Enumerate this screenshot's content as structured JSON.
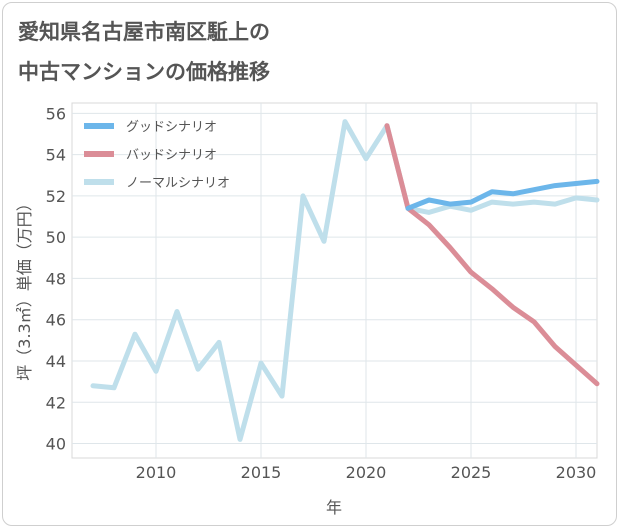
{
  "title": {
    "line1": "愛知県名古屋市南区駈上の",
    "line2": "中古マンションの価格推移"
  },
  "chart_data": {
    "type": "line",
    "xlabel": "年",
    "ylabel": "坪（3.3㎡）単価（万円）",
    "xlim": [
      2006,
      2031
    ],
    "ylim": [
      39.3,
      56.5
    ],
    "xticks": [
      2010,
      2015,
      2020,
      2025,
      2030
    ],
    "yticks": [
      40,
      42,
      44,
      46,
      48,
      50,
      52,
      54,
      56
    ],
    "grid": true,
    "legend_position": "top-left",
    "series": [
      {
        "name": "ノーマルシナリオ",
        "color": "#bfdfeb",
        "x": [
          2007,
          2008,
          2009,
          2010,
          2011,
          2012,
          2013,
          2014,
          2015,
          2016,
          2017,
          2018,
          2019,
          2020,
          2021,
          2022,
          2023,
          2024,
          2025,
          2026,
          2027,
          2028,
          2029,
          2030,
          2031
        ],
        "values": [
          42.8,
          42.7,
          45.3,
          43.5,
          46.4,
          43.6,
          44.9,
          40.2,
          43.9,
          42.3,
          52.0,
          49.8,
          55.6,
          53.8,
          55.4,
          51.4,
          51.2,
          51.5,
          51.3,
          51.7,
          51.6,
          51.7,
          51.6,
          51.9,
          51.8
        ]
      },
      {
        "name": "グッドシナリオ",
        "color": "#6cb6ea",
        "x": [
          2022,
          2023,
          2024,
          2025,
          2026,
          2027,
          2028,
          2029,
          2030,
          2031
        ],
        "values": [
          51.4,
          51.8,
          51.6,
          51.7,
          52.2,
          52.1,
          52.3,
          52.5,
          52.6,
          52.7
        ]
      },
      {
        "name": "バッドシナリオ",
        "color": "#db8d97",
        "x": [
          2021,
          2022,
          2023,
          2024,
          2025,
          2026,
          2027,
          2028,
          2029,
          2030,
          2031
        ],
        "values": [
          55.4,
          51.4,
          50.6,
          49.5,
          48.3,
          47.5,
          46.6,
          45.9,
          44.7,
          43.8,
          42.9
        ]
      }
    ],
    "legend": [
      {
        "name": "グッドシナリオ",
        "color": "#6cb6ea"
      },
      {
        "name": "バッドシナリオ",
        "color": "#db8d97"
      },
      {
        "name": "ノーマルシナリオ",
        "color": "#bfdfeb"
      }
    ]
  }
}
